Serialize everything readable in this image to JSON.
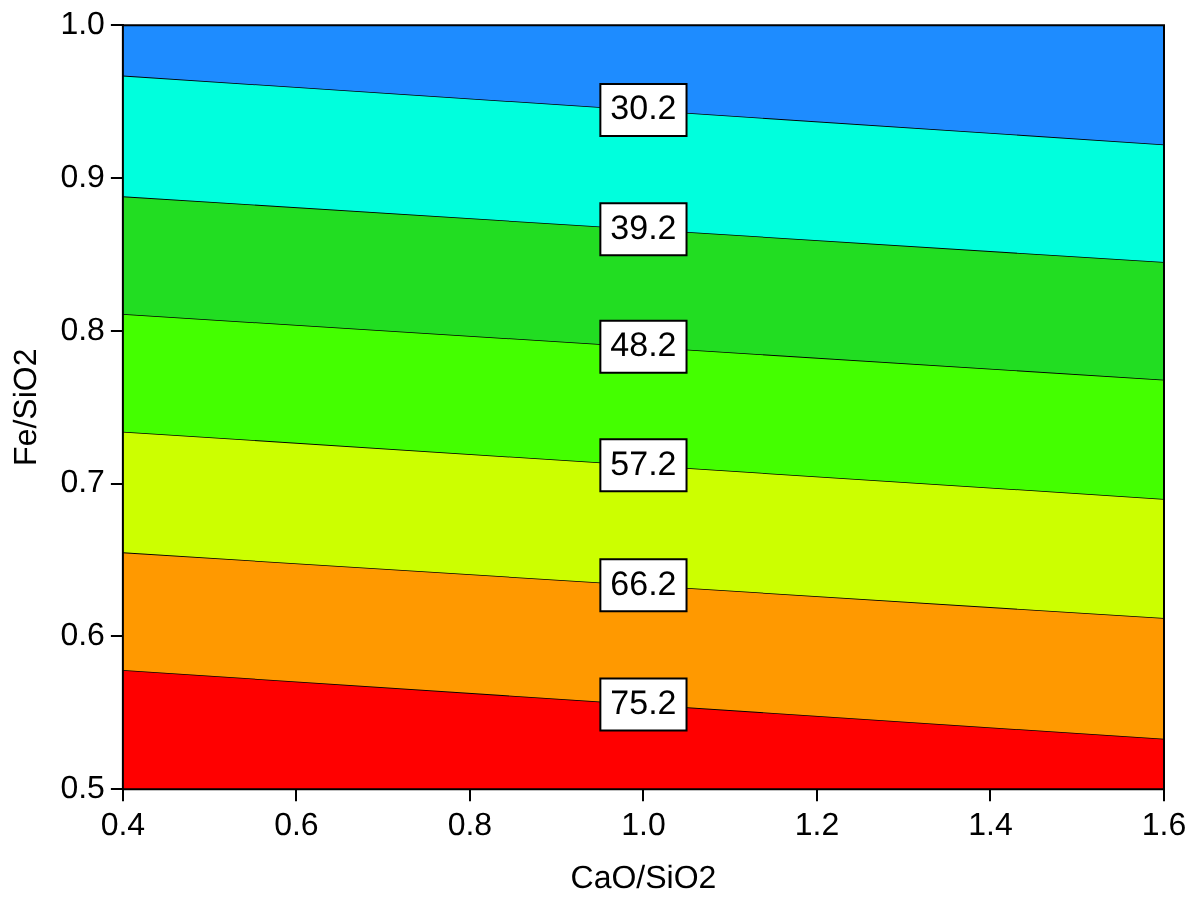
{
  "chart_data": {
    "type": "area",
    "xlabel": "CaO/SiO2",
    "ylabel": "Fe/SiO2",
    "x": [
      0.4,
      1.6
    ],
    "series": [
      {
        "color": "#1e8cff",
        "values": [
          1.0,
          1.0
        ]
      },
      {
        "name": "30.2",
        "color": "#00ffdd",
        "values": [
          0.967,
          0.922
        ]
      },
      {
        "name": "39.2",
        "color": "#22dd22",
        "values": [
          0.888,
          0.845
        ]
      },
      {
        "name": "48.2",
        "color": "#44ff00",
        "values": [
          0.811,
          0.768
        ]
      },
      {
        "name": "57.2",
        "color": "#ccff00",
        "values": [
          0.734,
          0.69
        ]
      },
      {
        "name": "66.2",
        "color": "#ff9900",
        "values": [
          0.655,
          0.612
        ]
      },
      {
        "name": "75.2",
        "color": "#ff0000",
        "values": [
          0.578,
          0.533
        ]
      }
    ],
    "xlim": [
      0.4,
      1.6
    ],
    "xticks": [
      0.4,
      0.6,
      0.8,
      {
        "value": 1,
        "label": "1.0"
      },
      1.2,
      1.4,
      1.6
    ],
    "ylim": [
      0.5,
      1.0
    ],
    "yticks": [
      0.5,
      0.6,
      0.7,
      0.8,
      0.9,
      {
        "value": 1,
        "label": "1.0"
      }
    ],
    "grid": false,
    "legend": false
  }
}
